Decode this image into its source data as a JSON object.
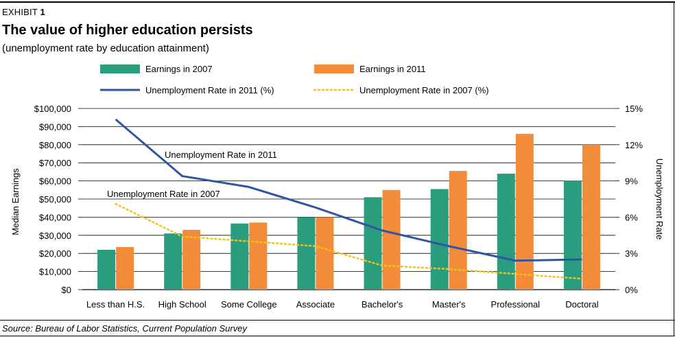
{
  "header": {
    "exhibit_label": "EXHIBIT",
    "exhibit_number": "1",
    "title": "The value of higher education persists",
    "subtitle": "(unemployment rate  by education attainment)"
  },
  "source": "Source: Bureau of Labor Statistics, Current Population Survey",
  "colors": {
    "earnings_2007": "#2a9d7e",
    "earnings_2011": "#f28c3a",
    "unemp_2011": "#2f55a4",
    "unemp_2007": "#f2c21b",
    "grid": "#000000"
  },
  "chart_data": {
    "type": "bar",
    "categories": [
      "Less than H.S.",
      "High School",
      "Some College",
      "Associate",
      "Bachelor's",
      "Master's",
      "Professional",
      "Doctoral"
    ],
    "series": [
      {
        "name": "Earnings in 2007",
        "kind": "bar",
        "axis": "left",
        "values": [
          22000,
          31000,
          36500,
          40000,
          51000,
          55500,
          64000,
          60000
        ]
      },
      {
        "name": "Earnings in 2011",
        "kind": "bar",
        "axis": "left",
        "values": [
          23500,
          33000,
          37000,
          40000,
          55000,
          65500,
          86000,
          80000
        ]
      },
      {
        "name": "Unemployment Rate in 2011 (%)",
        "kind": "line",
        "axis": "right",
        "values": [
          14.1,
          9.4,
          8.5,
          6.8,
          4.9,
          3.6,
          2.4,
          2.5
        ]
      },
      {
        "name": "Unemployment Rate in 2007 (%)",
        "kind": "dotted-line",
        "axis": "right",
        "values": [
          7.1,
          4.4,
          4.0,
          3.6,
          2.0,
          1.7,
          1.3,
          0.9
        ]
      }
    ],
    "ylabel_left": "Median Earnings",
    "ylabel_right": "Unemployment Rate",
    "ylim_left": [
      0,
      100000
    ],
    "ylim_right": [
      0,
      15
    ],
    "yticks_left": [
      "$0",
      "$10,000",
      "$20,000",
      "$30,000",
      "$40,000",
      "$50,000",
      "$60,000",
      "$70,000",
      "$80,000",
      "$90,000",
      "$100,000"
    ],
    "yticks_right": [
      "0%",
      "3%",
      "6%",
      "9%",
      "12%",
      "15%"
    ],
    "annotations": [
      "Unemployment Rate in 2011",
      "Unemployment Rate in 2007"
    ],
    "legend_position": "top",
    "grid": true
  }
}
